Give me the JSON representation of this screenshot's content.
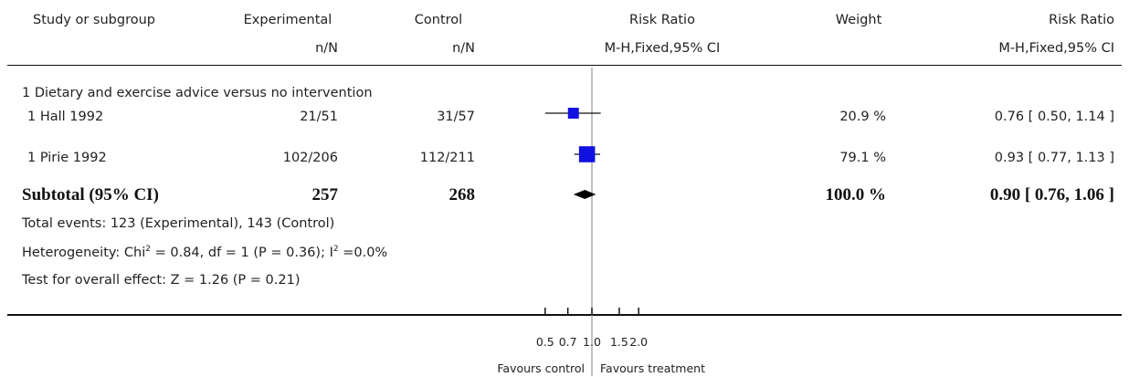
{
  "header": {
    "study": "Study or subgroup",
    "experimental": "Experimental",
    "control": "Control",
    "risk_ratio": "Risk Ratio",
    "weight": "Weight",
    "risk_ratio_right": "Risk Ratio",
    "exp_sub": "n/N",
    "ctrl_sub": "n/N",
    "method": "M-H,Fixed,95% CI",
    "method_right": "M-H,Fixed,95% CI"
  },
  "subgroup_title": "1 Dietary and exercise advice versus no intervention",
  "studies": [
    {
      "name": "1 Hall 1992",
      "experimental": "21/51",
      "control": "31/57",
      "weight": "20.9 %",
      "ci_text": "0.76 [ 0.50, 1.14 ]",
      "rr": 0.76,
      "lo": 0.5,
      "hi": 1.14,
      "w": 20.9
    },
    {
      "name": "1 Pirie 1992",
      "experimental": "102/206",
      "control": "112/211",
      "weight": "79.1 %",
      "ci_text": "0.93 [ 0.77, 1.13 ]",
      "rr": 0.93,
      "lo": 0.77,
      "hi": 1.13,
      "w": 79.1
    }
  ],
  "subtotal": {
    "label": "Subtotal (95% CI)",
    "experimental": "257",
    "control": "268",
    "weight": "100.0 %",
    "ci_text": "0.90 [ 0.76, 1.06 ]",
    "rr": 0.9,
    "lo": 0.76,
    "hi": 1.06
  },
  "notes": {
    "total_events": "Total events: 123 (Experimental), 143 (Control)",
    "heterogeneity_prefix": "Heterogeneity: Chi",
    "heterogeneity_sup1": "2",
    "heterogeneity_mid": " = 0.84, df = 1 (P = 0.36); I",
    "heterogeneity_sup2": "2",
    "heterogeneity_suffix": " =0.0%",
    "overall_effect": "Test for overall effect: Z = 1.26 (P = 0.21)"
  },
  "axis": {
    "ticks": [
      0.5,
      0.7,
      1.0,
      1.5,
      2.0
    ],
    "tick_labels": [
      "0.5",
      "0.7",
      "1.0",
      "1.5",
      "2.0"
    ],
    "favours_left": "Favours control",
    "favours_right": "Favours treatment"
  },
  "chart_data": {
    "type": "forest",
    "scale": "log",
    "xlim": [
      0.5,
      2.0
    ],
    "reference_line": 1.0,
    "series": [
      {
        "name": "1 Hall 1992",
        "values": [
          0.76
        ],
        "ci": [
          0.5,
          1.14
        ],
        "weight": 20.9
      },
      {
        "name": "1 Pirie 1992",
        "values": [
          0.93
        ],
        "ci": [
          0.77,
          1.13
        ],
        "weight": 79.1
      },
      {
        "name": "Subtotal (95% CI)",
        "values": [
          0.9
        ],
        "ci": [
          0.76,
          1.06
        ],
        "weight": 100.0
      }
    ]
  },
  "colors": {
    "marker": "#1010e0",
    "line": "#111111",
    "reference": "#999999"
  }
}
